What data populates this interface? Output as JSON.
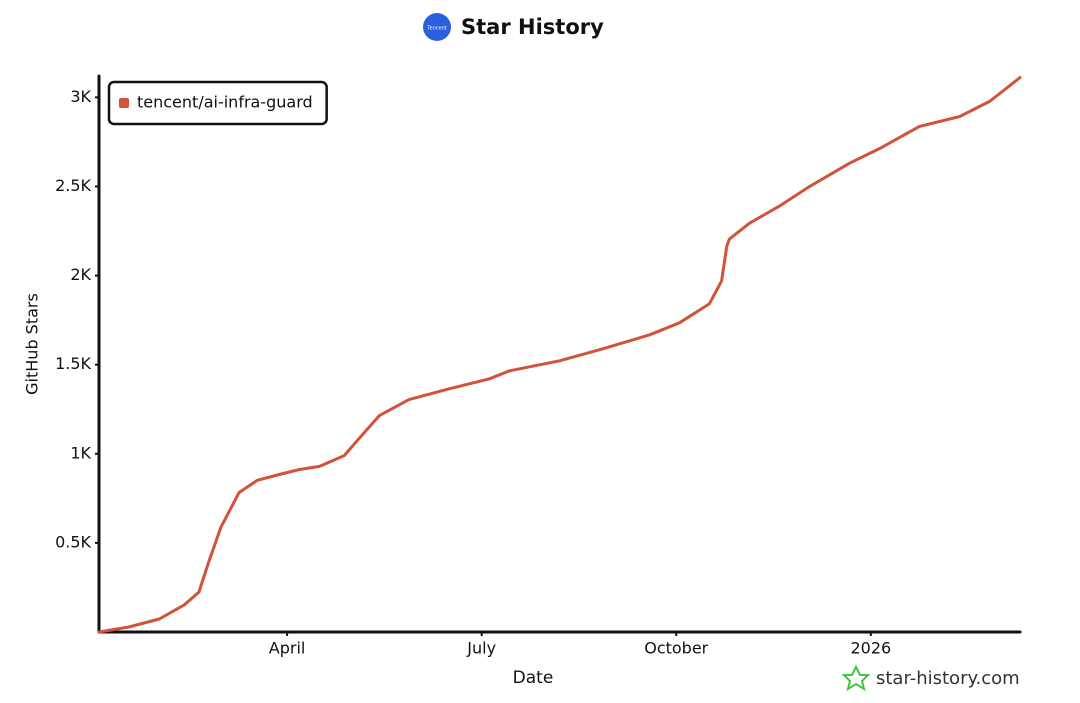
{
  "chart_data": {
    "type": "line",
    "title": "Star History",
    "logo_text": "Tencent",
    "xlabel": "Date",
    "ylabel": "GitHub Stars",
    "watermark": "star-history.com",
    "legend": "top-left",
    "x": [
      1.1,
      1.56,
      2.03,
      2.41,
      2.64,
      2.8,
      2.98,
      3.26,
      3.54,
      3.88,
      4.19,
      4.5,
      4.88,
      5.11,
      5.42,
      5.88,
      6.5,
      7.12,
      7.43,
      8.2,
      8.82,
      9.59,
      10.05,
      10.51,
      10.7,
      10.78,
      10.82,
      11.13,
      11.59,
      12.06,
      12.67,
      13.14,
      13.75,
      14.37,
      14.83,
      15.3
    ],
    "series": [
      {
        "name": "tencent/ai-infra-guard",
        "color": "#d0533a",
        "values": [
          0,
          28,
          73,
          151,
          224,
          403,
          588,
          783,
          851,
          884,
          912,
          929,
          990,
          1086,
          1214,
          1304,
          1365,
          1421,
          1466,
          1522,
          1584,
          1668,
          1735,
          1841,
          1970,
          2166,
          2205,
          2294,
          2390,
          2501,
          2630,
          2714,
          2837,
          2893,
          2977,
          3111
        ]
      }
    ],
    "xlim": [
      1.1,
      15.3
    ],
    "xticks": [
      {
        "value": 4,
        "label": "April"
      },
      {
        "value": 7,
        "label": "July"
      },
      {
        "value": 10,
        "label": "October"
      },
      {
        "value": 13,
        "label": "2026"
      }
    ],
    "ylim": [
      0,
      3120
    ],
    "yticks": [
      {
        "value": 500,
        "label": "0.5K"
      },
      {
        "value": 1000,
        "label": "1K"
      },
      {
        "value": 1500,
        "label": "1.5K"
      },
      {
        "value": 2000,
        "label": "2K"
      },
      {
        "value": 2500,
        "label": "2.5K"
      },
      {
        "value": 3000,
        "label": "3K"
      }
    ]
  }
}
